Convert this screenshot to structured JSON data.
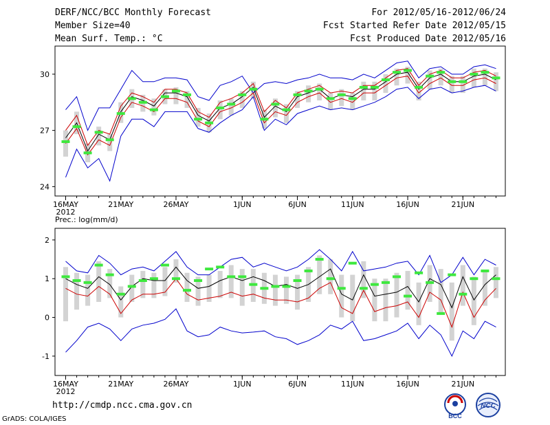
{
  "header": {
    "title": "DERF/NCC/BCC Monthly Forecast",
    "member_size": "Member Size=40",
    "variable": "Mean Surf. Temp.: °C",
    "period": "For 2012/05/16-2012/06/24",
    "fcst_started": "Fcst Started Refer Date 2012/05/15",
    "fcst_produced": "Fcst Produced Date 2012/05/16"
  },
  "footer": {
    "url": "http://cmdp.ncc.cma.gov.cn",
    "credit": "GrADS: COLA/IGES",
    "logo_bcc": "BCC",
    "logo_ncc": "NCC"
  },
  "colors": {
    "envelope": "#0000cc",
    "ensemble_mean": "#000000",
    "percentile": "#cc0000",
    "box": "#d3d3d3",
    "control": "#3ee83e"
  },
  "chart_data": [
    {
      "type": "line",
      "title": "Mean Surf. Temp.: °C",
      "x_year_label": "2012",
      "x": [
        "16MAY",
        "17MAY",
        "18MAY",
        "19MAY",
        "20MAY",
        "21MAY",
        "22MAY",
        "23MAY",
        "24MAY",
        "25MAY",
        "26MAY",
        "27MAY",
        "28MAY",
        "29MAY",
        "30MAY",
        "31MAY",
        "1JUN",
        "2JUN",
        "3JUN",
        "4JUN",
        "5JUN",
        "6JUN",
        "7JUN",
        "8JUN",
        "9JUN",
        "10JUN",
        "11JUN",
        "12JUN",
        "13JUN",
        "14JUN",
        "15JUN",
        "16JUN",
        "17JUN",
        "18JUN",
        "19JUN",
        "20JUN",
        "21JUN",
        "22JUN",
        "23JUN",
        "24JUN"
      ],
      "tick_labels": [
        "16MAY",
        "21MAY",
        "26MAY",
        "1JUN",
        "6JUN",
        "11JUN",
        "16JUN",
        "21JUN"
      ],
      "ylim": [
        23.5,
        31.5
      ],
      "yticks": [
        "24",
        "27",
        "30"
      ],
      "series": [
        {
          "name": "maximum",
          "values": [
            28.1,
            28.8,
            27.0,
            28.2,
            28.2,
            29.2,
            30.2,
            29.6,
            29.6,
            29.8,
            29.8,
            29.7,
            28.8,
            28.6,
            29.4,
            29.6,
            29.9,
            29.0,
            29.5,
            29.6,
            29.5,
            29.7,
            29.8,
            30.0,
            29.8,
            29.8,
            29.7,
            30.0,
            29.8,
            30.2,
            30.6,
            30.7,
            29.8,
            30.3,
            30.4,
            30.0,
            30.0,
            30.4,
            30.5,
            30.3
          ]
        },
        {
          "name": "upper",
          "values": [
            27.0,
            27.8,
            26.2,
            27.0,
            26.8,
            28.3,
            29.0,
            28.8,
            28.5,
            29.2,
            29.2,
            29.0,
            28.0,
            27.7,
            28.5,
            28.7,
            29.0,
            29.5,
            28.0,
            28.6,
            28.2,
            29.0,
            29.2,
            29.4,
            29.0,
            29.1,
            29.0,
            29.4,
            29.4,
            29.8,
            30.2,
            30.3,
            29.4,
            30.0,
            30.2,
            29.8,
            29.8,
            30.1,
            30.2,
            29.9
          ]
        },
        {
          "name": "ensemble_mean",
          "values": [
            26.6,
            27.4,
            25.9,
            26.8,
            26.5,
            28.0,
            28.8,
            28.6,
            28.3,
            29.0,
            29.0,
            28.8,
            27.8,
            27.5,
            28.2,
            28.4,
            28.8,
            29.3,
            27.7,
            28.3,
            28.0,
            28.8,
            29.0,
            29.2,
            28.7,
            28.9,
            28.8,
            29.2,
            29.2,
            29.6,
            30.0,
            30.1,
            29.2,
            29.8,
            30.0,
            29.6,
            29.6,
            29.9,
            30.0,
            29.7
          ]
        },
        {
          "name": "lower",
          "values": [
            26.3,
            27.1,
            25.7,
            26.5,
            26.2,
            27.7,
            28.5,
            28.3,
            28.0,
            28.7,
            28.7,
            28.5,
            27.5,
            27.2,
            28.0,
            28.2,
            28.5,
            29.0,
            27.4,
            28.0,
            27.8,
            28.5,
            28.8,
            29.0,
            28.5,
            28.7,
            28.5,
            29.0,
            29.0,
            29.4,
            29.8,
            29.9,
            29.0,
            29.5,
            29.8,
            29.4,
            29.4,
            29.7,
            29.8,
            29.5
          ]
        },
        {
          "name": "minimum",
          "values": [
            24.5,
            26.0,
            25.0,
            25.5,
            24.3,
            26.7,
            27.6,
            27.6,
            27.2,
            28.0,
            28.0,
            28.0,
            27.1,
            26.9,
            27.4,
            27.8,
            28.1,
            28.8,
            27.0,
            27.6,
            27.3,
            27.9,
            28.1,
            28.3,
            28.1,
            28.2,
            28.1,
            28.3,
            28.5,
            28.8,
            29.2,
            29.3,
            28.7,
            29.2,
            29.3,
            29.0,
            29.1,
            29.3,
            29.4,
            29.1
          ]
        },
        {
          "name": "control",
          "values": [
            26.4,
            27.2,
            25.8,
            26.9,
            26.5,
            27.9,
            28.7,
            28.5,
            28.1,
            28.8,
            29.1,
            28.9,
            27.6,
            27.4,
            28.2,
            28.4,
            28.9,
            29.2,
            27.6,
            28.4,
            28.1,
            28.9,
            29.1,
            29.2,
            28.7,
            28.9,
            28.7,
            29.3,
            29.3,
            29.7,
            30.1,
            30.2,
            29.3,
            29.9,
            30.1,
            29.6,
            29.6,
            30.0,
            30.1,
            29.8
          ]
        }
      ],
      "box_range": [
        [
          25.6,
          27.0
        ],
        [
          26.8,
          28.0
        ],
        [
          25.3,
          26.3
        ],
        [
          26.2,
          27.2
        ],
        [
          25.9,
          26.8
        ],
        [
          27.4,
          28.5
        ],
        [
          28.2,
          29.2
        ],
        [
          28.0,
          28.9
        ],
        [
          27.8,
          28.7
        ],
        [
          28.4,
          29.2
        ],
        [
          28.4,
          29.3
        ],
        [
          28.2,
          29.1
        ],
        [
          27.2,
          28.2
        ],
        [
          26.9,
          27.9
        ],
        [
          27.6,
          28.6
        ],
        [
          27.8,
          28.7
        ],
        [
          28.2,
          29.1
        ],
        [
          28.7,
          29.6
        ],
        [
          27.1,
          28.1
        ],
        [
          27.7,
          28.7
        ],
        [
          27.4,
          28.4
        ],
        [
          28.2,
          29.1
        ],
        [
          28.5,
          29.4
        ],
        [
          28.6,
          29.5
        ],
        [
          28.1,
          29.0
        ],
        [
          28.3,
          29.2
        ],
        [
          28.1,
          29.0
        ],
        [
          28.6,
          29.6
        ],
        [
          28.6,
          29.6
        ],
        [
          29.0,
          30.0
        ],
        [
          29.4,
          30.3
        ],
        [
          29.5,
          30.4
        ],
        [
          28.6,
          29.6
        ],
        [
          29.2,
          30.2
        ],
        [
          29.4,
          30.3
        ],
        [
          29.0,
          29.9
        ],
        [
          29.0,
          29.9
        ],
        [
          29.3,
          30.3
        ],
        [
          29.4,
          30.3
        ],
        [
          29.1,
          30.1
        ]
      ]
    },
    {
      "type": "line",
      "title": "Prec.: log(mm/d)",
      "x_year_label": "2012",
      "x": [
        "16MAY",
        "17MAY",
        "18MAY",
        "19MAY",
        "20MAY",
        "21MAY",
        "22MAY",
        "23MAY",
        "24MAY",
        "25MAY",
        "26MAY",
        "27MAY",
        "28MAY",
        "29MAY",
        "30MAY",
        "31MAY",
        "1JUN",
        "2JUN",
        "3JUN",
        "4JUN",
        "5JUN",
        "6JUN",
        "7JUN",
        "8JUN",
        "9JUN",
        "10JUN",
        "11JUN",
        "12JUN",
        "13JUN",
        "14JUN",
        "15JUN",
        "16JUN",
        "17JUN",
        "18JUN",
        "19JUN",
        "20JUN",
        "21JUN",
        "22JUN",
        "23JUN",
        "24JUN"
      ],
      "tick_labels": [
        "16MAY",
        "21MAY",
        "26MAY",
        "1JUN",
        "6JUN",
        "11JUN",
        "16JUN",
        "21JUN"
      ],
      "ylim": [
        -1.5,
        2.3
      ],
      "yticks": [
        "-1",
        "0",
        "1",
        "2"
      ],
      "series": [
        {
          "name": "maximum",
          "values": [
            1.45,
            1.2,
            1.15,
            1.6,
            1.4,
            1.1,
            1.25,
            1.3,
            1.2,
            1.45,
            1.7,
            1.3,
            1.1,
            1.1,
            1.3,
            1.5,
            1.55,
            1.3,
            1.4,
            1.3,
            1.2,
            1.3,
            1.5,
            1.75,
            1.5,
            1.2,
            1.7,
            1.2,
            1.25,
            1.3,
            1.4,
            1.45,
            1.1,
            1.6,
            0.9,
            1.1,
            1.55,
            1.1,
            1.5,
            1.35
          ]
        },
        {
          "name": "ensemble_mean",
          "values": [
            1.0,
            0.85,
            0.75,
            1.05,
            0.85,
            0.45,
            0.8,
            1.0,
            0.95,
            0.95,
            1.3,
            0.95,
            0.75,
            0.8,
            0.95,
            1.05,
            0.95,
            1.05,
            0.95,
            0.8,
            0.85,
            0.75,
            0.85,
            1.05,
            1.25,
            0.6,
            0.45,
            1.1,
            0.55,
            0.6,
            0.65,
            0.8,
            0.4,
            1.0,
            0.85,
            0.25,
            1.05,
            0.45,
            0.85,
            1.1
          ]
        },
        {
          "name": "lower",
          "values": [
            0.75,
            0.6,
            0.55,
            0.8,
            0.6,
            0.1,
            0.45,
            0.6,
            0.6,
            0.65,
            1.0,
            0.6,
            0.45,
            0.5,
            0.55,
            0.65,
            0.55,
            0.6,
            0.5,
            0.45,
            0.45,
            0.4,
            0.5,
            0.75,
            0.9,
            0.25,
            0.1,
            0.7,
            0.15,
            0.25,
            0.3,
            0.4,
            0.0,
            0.65,
            0.45,
            -0.25,
            0.65,
            0.0,
            0.45,
            0.75
          ]
        },
        {
          "name": "minimum",
          "values": [
            -0.9,
            -0.6,
            -0.25,
            -0.15,
            -0.3,
            -0.6,
            -0.3,
            -0.2,
            -0.15,
            -0.05,
            0.22,
            -0.35,
            -0.5,
            -0.45,
            -0.25,
            -0.35,
            -0.4,
            -0.38,
            -0.35,
            -0.5,
            -0.55,
            -0.7,
            -0.6,
            -0.45,
            -0.2,
            -0.3,
            -0.1,
            -0.6,
            -0.55,
            -0.45,
            -0.35,
            -0.15,
            -0.55,
            -0.2,
            -0.45,
            -1.0,
            -0.35,
            -0.55,
            -0.1,
            -0.25
          ]
        },
        {
          "name": "control",
          "values": [
            1.05,
            0.95,
            0.9,
            1.35,
            1.1,
            0.6,
            0.8,
            0.95,
            1.0,
            1.35,
            1.0,
            0.7,
            0.95,
            1.25,
            1.3,
            1.05,
            1.05,
            0.85,
            0.75,
            0.8,
            0.8,
            0.95,
            1.2,
            1.5,
            1.0,
            0.75,
            1.4,
            0.75,
            0.85,
            0.9,
            1.05,
            0.55,
            1.15,
            0.9,
            0.1,
            1.1,
            0.6,
            1.0,
            1.2,
            1.0
          ]
        }
      ],
      "box_range": [
        [
          -0.1,
          1.3
        ],
        [
          0.2,
          1.15
        ],
        [
          0.3,
          1.1
        ],
        [
          0.4,
          1.45
        ],
        [
          0.5,
          1.25
        ],
        [
          0.0,
          0.8
        ],
        [
          0.4,
          1.1
        ],
        [
          0.5,
          1.2
        ],
        [
          0.5,
          1.15
        ],
        [
          0.55,
          1.3
        ],
        [
          0.9,
          1.5
        ],
        [
          0.4,
          1.15
        ],
        [
          0.3,
          1.05
        ],
        [
          0.4,
          1.1
        ],
        [
          0.5,
          1.2
        ],
        [
          0.5,
          1.35
        ],
        [
          0.3,
          1.25
        ],
        [
          0.4,
          1.25
        ],
        [
          0.35,
          1.15
        ],
        [
          0.3,
          1.1
        ],
        [
          0.35,
          1.05
        ],
        [
          0.2,
          1.1
        ],
        [
          0.4,
          1.3
        ],
        [
          0.6,
          1.6
        ],
        [
          0.6,
          1.5
        ],
        [
          0.0,
          1.1
        ],
        [
          -0.1,
          1.1
        ],
        [
          0.5,
          1.45
        ],
        [
          -0.1,
          1.0
        ],
        [
          -0.1,
          1.0
        ],
        [
          0.0,
          1.15
        ],
        [
          0.2,
          1.2
        ],
        [
          -0.2,
          0.9
        ],
        [
          0.4,
          1.35
        ],
        [
          0.1,
          1.25
        ],
        [
          -0.6,
          0.9
        ],
        [
          0.3,
          1.35
        ],
        [
          -0.2,
          1.05
        ],
        [
          0.3,
          1.2
        ],
        [
          0.5,
          1.3
        ]
      ]
    }
  ]
}
